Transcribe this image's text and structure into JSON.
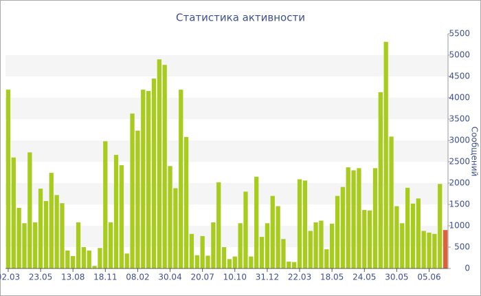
{
  "chart_data": {
    "type": "bar",
    "title": "Статистика активности",
    "y_label": "Сообщений",
    "categories": [
      "02.03",
      null,
      null,
      null,
      null,
      null,
      "23.05",
      null,
      null,
      null,
      null,
      null,
      "13.08",
      null,
      null,
      null,
      null,
      null,
      "18.11",
      null,
      null,
      null,
      null,
      null,
      "08.02",
      null,
      null,
      null,
      null,
      null,
      "30.04",
      null,
      null,
      null,
      null,
      null,
      "20.07",
      null,
      null,
      null,
      null,
      null,
      "10.10",
      null,
      null,
      null,
      null,
      null,
      "31.12",
      null,
      null,
      null,
      null,
      null,
      "22.03",
      null,
      null,
      null,
      null,
      null,
      "18.05",
      null,
      null,
      null,
      null,
      null,
      "24.05",
      null,
      null,
      null,
      null,
      null,
      "30.05",
      null,
      null,
      null,
      null,
      null,
      "05.06",
      null,
      null,
      null
    ],
    "values": [
      4190,
      2600,
      1420,
      1060,
      2720,
      1080,
      1870,
      1580,
      2240,
      1720,
      1530,
      420,
      290,
      1080,
      500,
      420,
      60,
      480,
      2980,
      1080,
      2660,
      2420,
      350,
      3630,
      3230,
      4190,
      4160,
      4450,
      4900,
      4770,
      2400,
      1880,
      4190,
      3080,
      810,
      310,
      760,
      300,
      1080,
      2020,
      500,
      220,
      280,
      1060,
      1800,
      280,
      2150,
      740,
      1060,
      1700,
      1460,
      690,
      160,
      150,
      2090,
      2060,
      880,
      1080,
      1120,
      450,
      1050,
      1700,
      1910,
      2370,
      2300,
      2350,
      1370,
      1360,
      2350,
      4130,
      5310,
      3090,
      1460,
      1060,
      1890,
      1520,
      1640,
      880,
      840,
      810,
      1980,
      900
    ],
    "color": "#a8cc1e",
    "last_bar_color": "#e0603a",
    "ylim": [
      0,
      5500
    ],
    "yticks": [
      0,
      500,
      1000,
      1500,
      2000,
      2500,
      3000,
      3500,
      4000,
      4500,
      5000,
      5500
    ],
    "grid": "bands"
  }
}
